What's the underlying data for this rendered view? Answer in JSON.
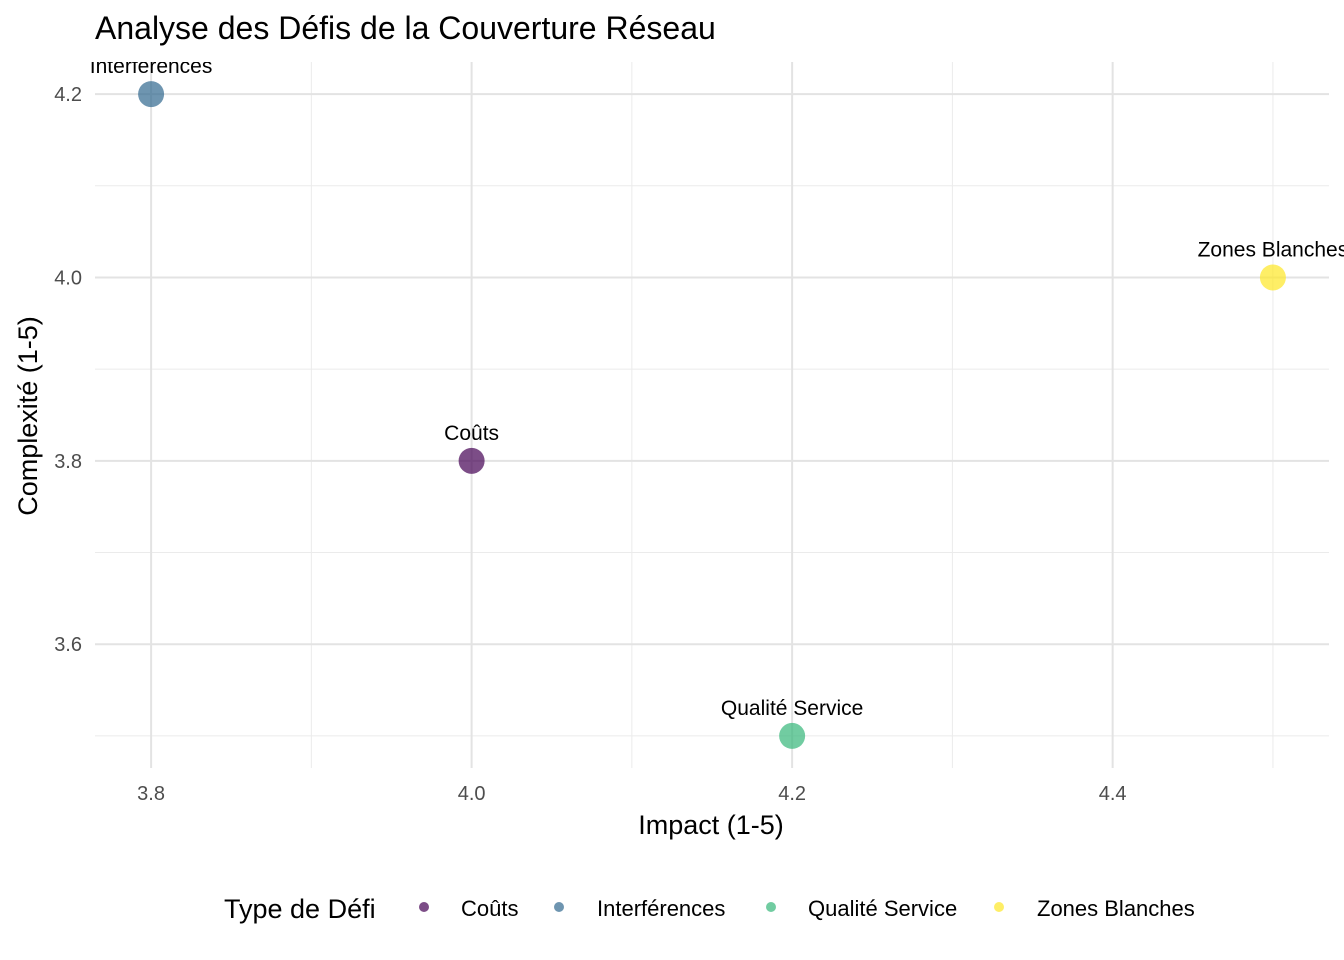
{
  "chart_data": {
    "type": "scatter",
    "title": "Analyse des Défis de la Couverture Réseau",
    "xlabel": "Impact (1-5)",
    "ylabel": "Complexité (1-5)",
    "xlim": [
      3.765,
      4.535
    ],
    "ylim": [
      3.465,
      4.235
    ],
    "x_ticks": [
      "3.8",
      "4.0",
      "4.2",
      "4.4"
    ],
    "y_ticks": [
      "3.6",
      "3.8",
      "4.0",
      "4.2"
    ],
    "grid": true,
    "legend": {
      "title": "Type de Défi",
      "position": "bottom",
      "entries": [
        "Coûts",
        "Interférences",
        "Qualité Service",
        "Zones Blanches"
      ]
    },
    "points": [
      {
        "category": "Coûts",
        "label": "Coûts",
        "x": 4.0,
        "y": 3.8,
        "color": "#440154"
      },
      {
        "category": "Interférences",
        "label": "Interférences",
        "x": 3.8,
        "y": 4.2,
        "color": "#31688E"
      },
      {
        "category": "Qualité Service",
        "label": "Qualité Service",
        "x": 4.2,
        "y": 3.5,
        "color": "#35B779"
      },
      {
        "category": "Zones Blanches",
        "label": "Zones Blanches",
        "x": 4.5,
        "y": 4.0,
        "color": "#FDE725"
      }
    ]
  }
}
